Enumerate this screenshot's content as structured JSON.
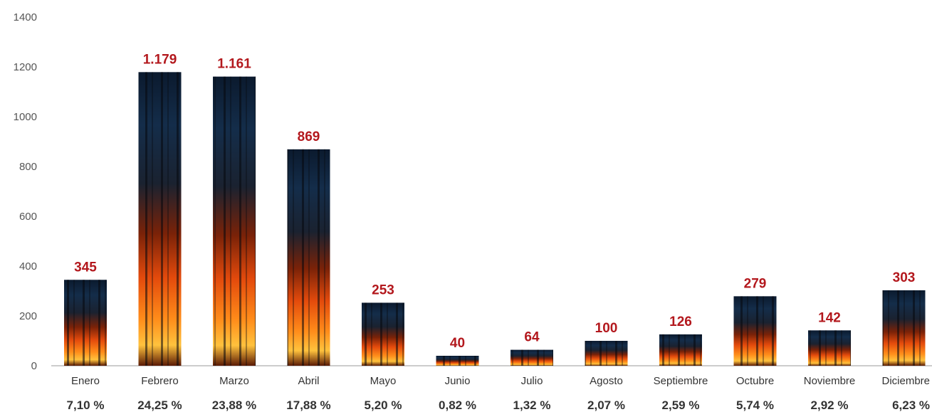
{
  "chart_data": {
    "type": "bar",
    "categories": [
      "Enero",
      "Febrero",
      "Marzo",
      "Abril",
      "Mayo",
      "Junio",
      "Julio",
      "Agosto",
      "Septiembre",
      "Octubre",
      "Noviembre",
      "Diciembre"
    ],
    "values": [
      345,
      1179,
      1161,
      869,
      253,
      40,
      64,
      100,
      126,
      279,
      142,
      303
    ],
    "value_labels": [
      "345",
      "1.179",
      "1.161",
      "869",
      "253",
      "40",
      "64",
      "100",
      "126",
      "279",
      "142",
      "303"
    ],
    "percentages": [
      "7,10 %",
      "24,25 %",
      "23,88 %",
      "17,88 %",
      "5,20 %",
      "0,82 %",
      "1,32 %",
      "2,07 %",
      "2,59 %",
      "5,74 %",
      "2,92 %",
      "6,23 %"
    ],
    "ylim": [
      0,
      1400
    ],
    "yticks": [
      "0",
      "200",
      "400",
      "600",
      "800",
      "1000",
      "1200",
      "1400"
    ],
    "grid": false,
    "bar_fill": "fire-image",
    "colors": {
      "value_label": "#b3181d",
      "axis": "#9a9a9a",
      "text": "#333333"
    }
  }
}
